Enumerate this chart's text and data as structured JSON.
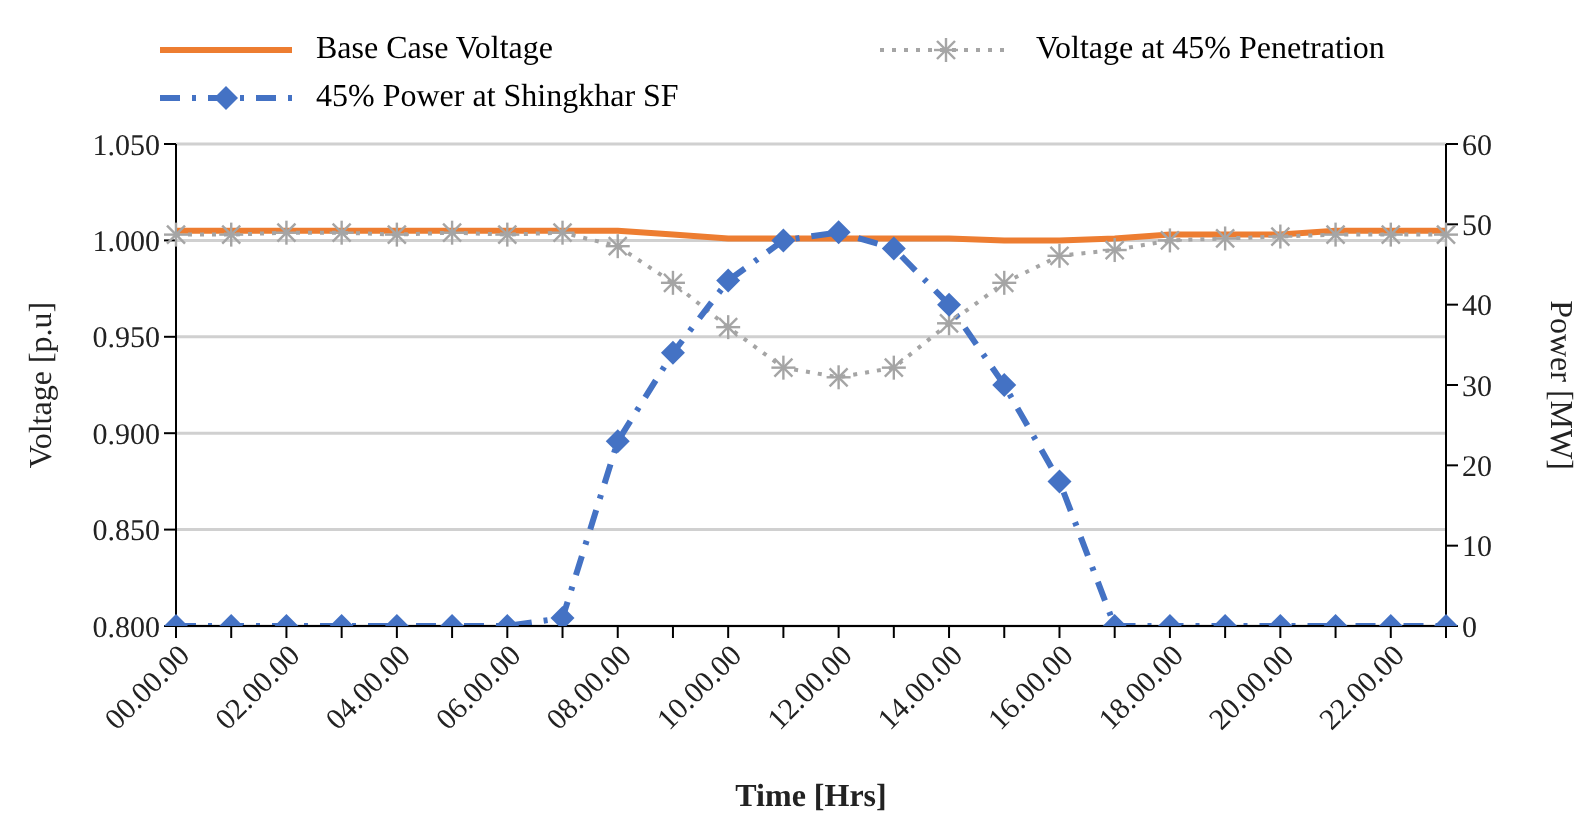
{
  "chart_data": {
    "type": "line",
    "xlabel": "Time [Hrs]",
    "ylabel": "Voltage [p.u]",
    "y2label": "Power [MW]",
    "categories": [
      "00.00.00",
      null,
      "02.00.00",
      null,
      "04.00.00",
      null,
      "06.00.00",
      null,
      "08.00.00",
      null,
      "10.00.00",
      null,
      "12.00.00",
      null,
      "14.00.00",
      null,
      "16.00.00",
      null,
      "18.00.00",
      null,
      "20.00.00",
      null,
      "22.00.00",
      null
    ],
    "series": [
      {
        "name": "Base Case Voltage",
        "color": "#ed7d31",
        "marker": "none",
        "line_style": "solid",
        "values": [
          1.005,
          1.005,
          1.005,
          1.005,
          1.005,
          1.005,
          1.005,
          1.005,
          1.005,
          1.003,
          1.001,
          1.001,
          1.001,
          1.001,
          1.001,
          1.0,
          1.0,
          1.001,
          1.003,
          1.003,
          1.003,
          1.005,
          1.005,
          1.005
        ]
      },
      {
        "name": "Voltage at 45% Penetration",
        "color": "#a5a5a5",
        "marker": "cross",
        "line_style": "dotted",
        "values": [
          1.003,
          1.003,
          1.004,
          1.004,
          1.003,
          1.004,
          1.003,
          1.004,
          0.997,
          0.978,
          0.955,
          0.934,
          0.929,
          0.934,
          0.957,
          0.978,
          0.992,
          0.995,
          1.0,
          1.001,
          1.002,
          1.003,
          1.003,
          1.003
        ]
      },
      {
        "name": "45% Power at Shingkhar SF",
        "color": "#4472c4",
        "marker": "diamond",
        "line_style": "dashed",
        "axis": "y2",
        "values": [
          0,
          0,
          0,
          0,
          0,
          0,
          0,
          1,
          23,
          34,
          43,
          48,
          49,
          47,
          40,
          30,
          18,
          0,
          0,
          0,
          0,
          0,
          0,
          0
        ]
      }
    ],
    "ylim": [
      0.8,
      1.05
    ],
    "yticks": [
      {
        "value": 0.8,
        "label": "0.800"
      },
      {
        "value": 0.85,
        "label": "0.850"
      },
      {
        "value": 0.9,
        "label": "0.900"
      },
      {
        "value": 0.95,
        "label": "0.950"
      },
      {
        "value": 1.0,
        "label": "1.000"
      },
      {
        "value": 1.05,
        "label": "1.050"
      }
    ],
    "y2lim": [
      0,
      60
    ],
    "y2ticks": [
      0,
      10,
      20,
      30,
      40,
      50,
      60
    ],
    "grid": "y",
    "legend": "top"
  }
}
